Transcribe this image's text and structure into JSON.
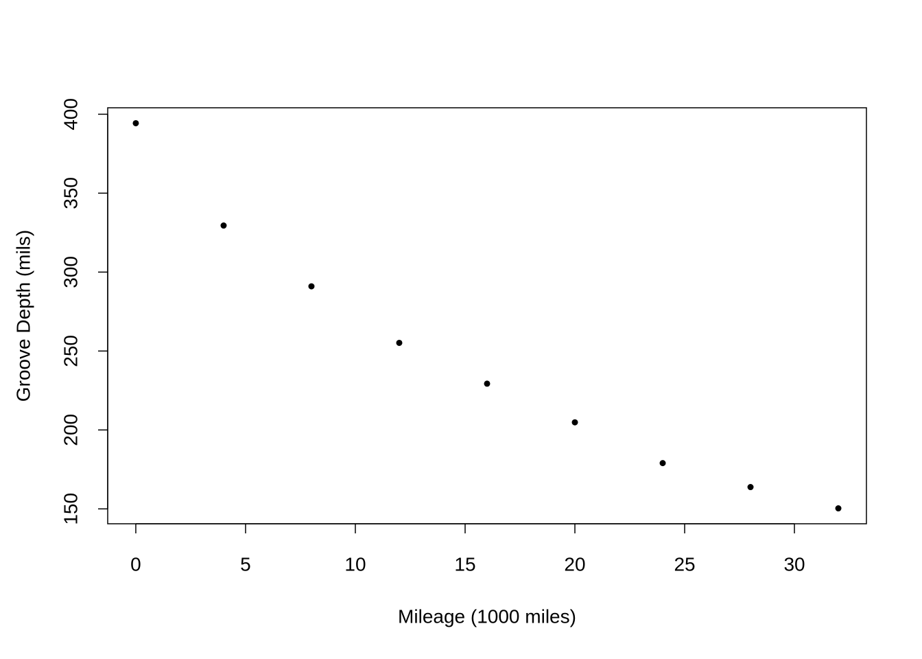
{
  "chart_data": {
    "type": "scatter",
    "x_label": "Mileage (1000 miles)",
    "y_label": "Groove Depth (mils)",
    "x": [
      0,
      4,
      8,
      12,
      16,
      20,
      24,
      28,
      32
    ],
    "values": [
      394.33,
      329.5,
      291.0,
      255.17,
      229.33,
      204.83,
      179.0,
      163.83,
      150.33
    ],
    "color": "#000000",
    "xlim": [
      -1.28,
      33.28
    ],
    "xticks": [
      0,
      5,
      10,
      15,
      20,
      25,
      30
    ],
    "ylim": [
      140.57,
      404.09
    ],
    "yticks": [
      150,
      200,
      250,
      300,
      350,
      400
    ]
  }
}
